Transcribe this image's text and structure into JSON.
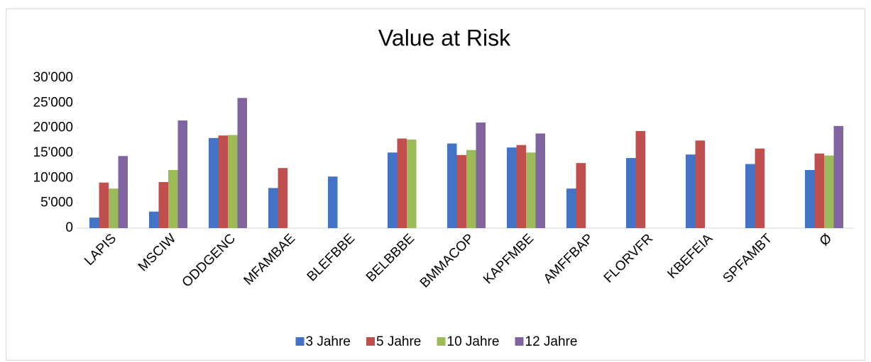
{
  "chart_data": {
    "type": "bar",
    "title": "Value at Risk",
    "categories": [
      "LAPIS",
      "MSCIW",
      "ODDGENC",
      "MFAMBAE",
      "BLEFBBE",
      "BELBBBE",
      "BMMACOP",
      "KAPFMBE",
      "AMFFBAP",
      "FLORVFR",
      "KBEFEIA",
      "SPFAMBT",
      "Ø"
    ],
    "series": [
      {
        "name": "3 Jahre",
        "color": "#4472c4",
        "values": [
          2100,
          3300,
          18000,
          8000,
          10300,
          15100,
          16900,
          16100,
          7900,
          14000,
          14700,
          12800,
          11600
        ]
      },
      {
        "name": "5 Jahre",
        "color": "#c0504d",
        "values": [
          9100,
          9200,
          18500,
          12000,
          null,
          17900,
          14600,
          16600,
          13000,
          19400,
          17500,
          15900,
          14900
        ]
      },
      {
        "name": "10 Jahre",
        "color": "#9bbb59",
        "values": [
          7900,
          11600,
          18600,
          null,
          null,
          17700,
          15600,
          15100,
          null,
          null,
          null,
          null,
          14500
        ]
      },
      {
        "name": "12 Jahre",
        "color": "#8064a2",
        "values": [
          14400,
          21500,
          26000,
          null,
          null,
          null,
          21100,
          18900,
          null,
          null,
          null,
          null,
          20400
        ]
      }
    ],
    "ylim": [
      0,
      30000
    ],
    "yticks": [
      0,
      {
        "value": 5000,
        "label": "5'000"
      },
      {
        "value": 10000,
        "label": "10'000"
      },
      {
        "value": 15000,
        "label": "15'000"
      },
      {
        "value": 20000,
        "label": "20'000"
      },
      {
        "value": 25000,
        "label": "25'000"
      },
      {
        "value": 30000,
        "label": "30'000"
      }
    ],
    "legend": "bottom"
  }
}
